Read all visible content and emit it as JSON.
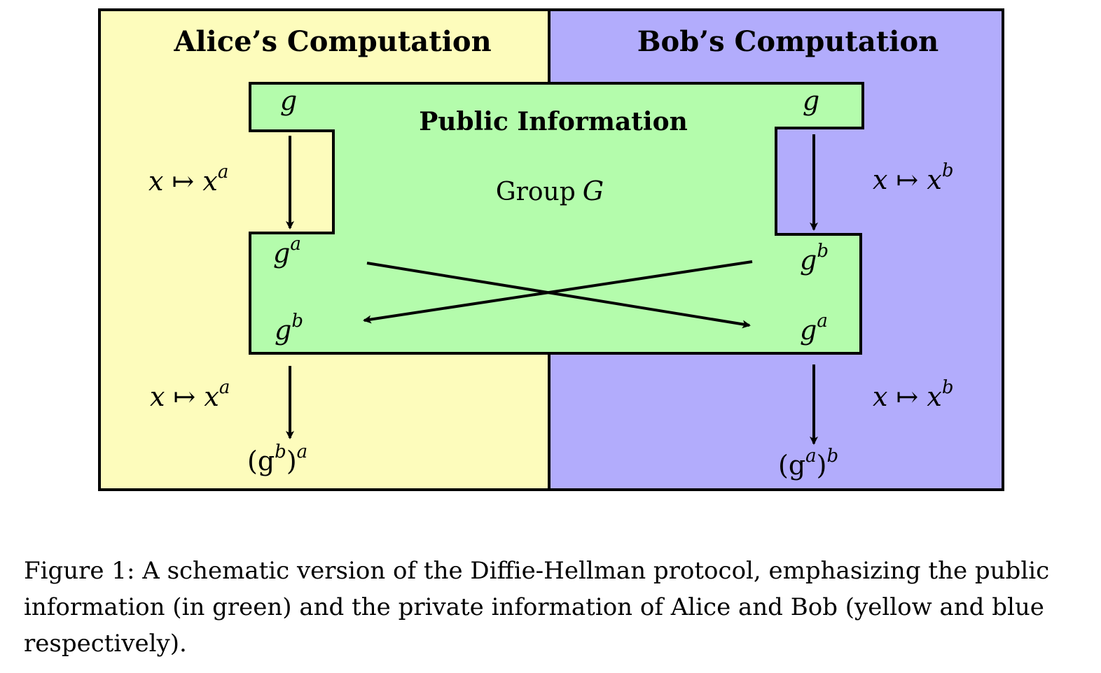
{
  "alice": {
    "title": "Alice’s Computation",
    "map_top": {
      "base": "x ↦ x",
      "exp": "a"
    },
    "map_bottom": {
      "base": "x ↦ x",
      "exp": "a"
    },
    "result": {
      "open": "(g",
      "inner_exp": "b",
      "close": ")",
      "outer_exp": "a"
    }
  },
  "bob": {
    "title": "Bob’s Computation",
    "map_top": {
      "base": "x ↦ x",
      "exp": "b"
    },
    "map_bottom": {
      "base": "x ↦ x",
      "exp": "b"
    },
    "result": {
      "open": "(g",
      "inner_exp": "a",
      "close": ")",
      "outer_exp": "b"
    }
  },
  "public": {
    "title": "Public Information",
    "group_label": "Group",
    "group_symbol": "G",
    "g_left": "g",
    "g_right": "g",
    "left_sent": {
      "base": "g",
      "exp": "a"
    },
    "left_received": {
      "base": "g",
      "exp": "b"
    },
    "right_sent": {
      "base": "g",
      "exp": "b"
    },
    "right_received": {
      "base": "g",
      "exp": "a"
    }
  },
  "caption": "Figure 1: A schematic version of the Diffie-Hellman protocol, emphasizing the public information (in green) and the private information of Alice and Bob (yellow and blue respectively).",
  "colors": {
    "alice_bg": "#fdfcbc",
    "bob_bg": "#b2acfc",
    "public_bg": "#b4fcac",
    "stroke": "#000000"
  }
}
